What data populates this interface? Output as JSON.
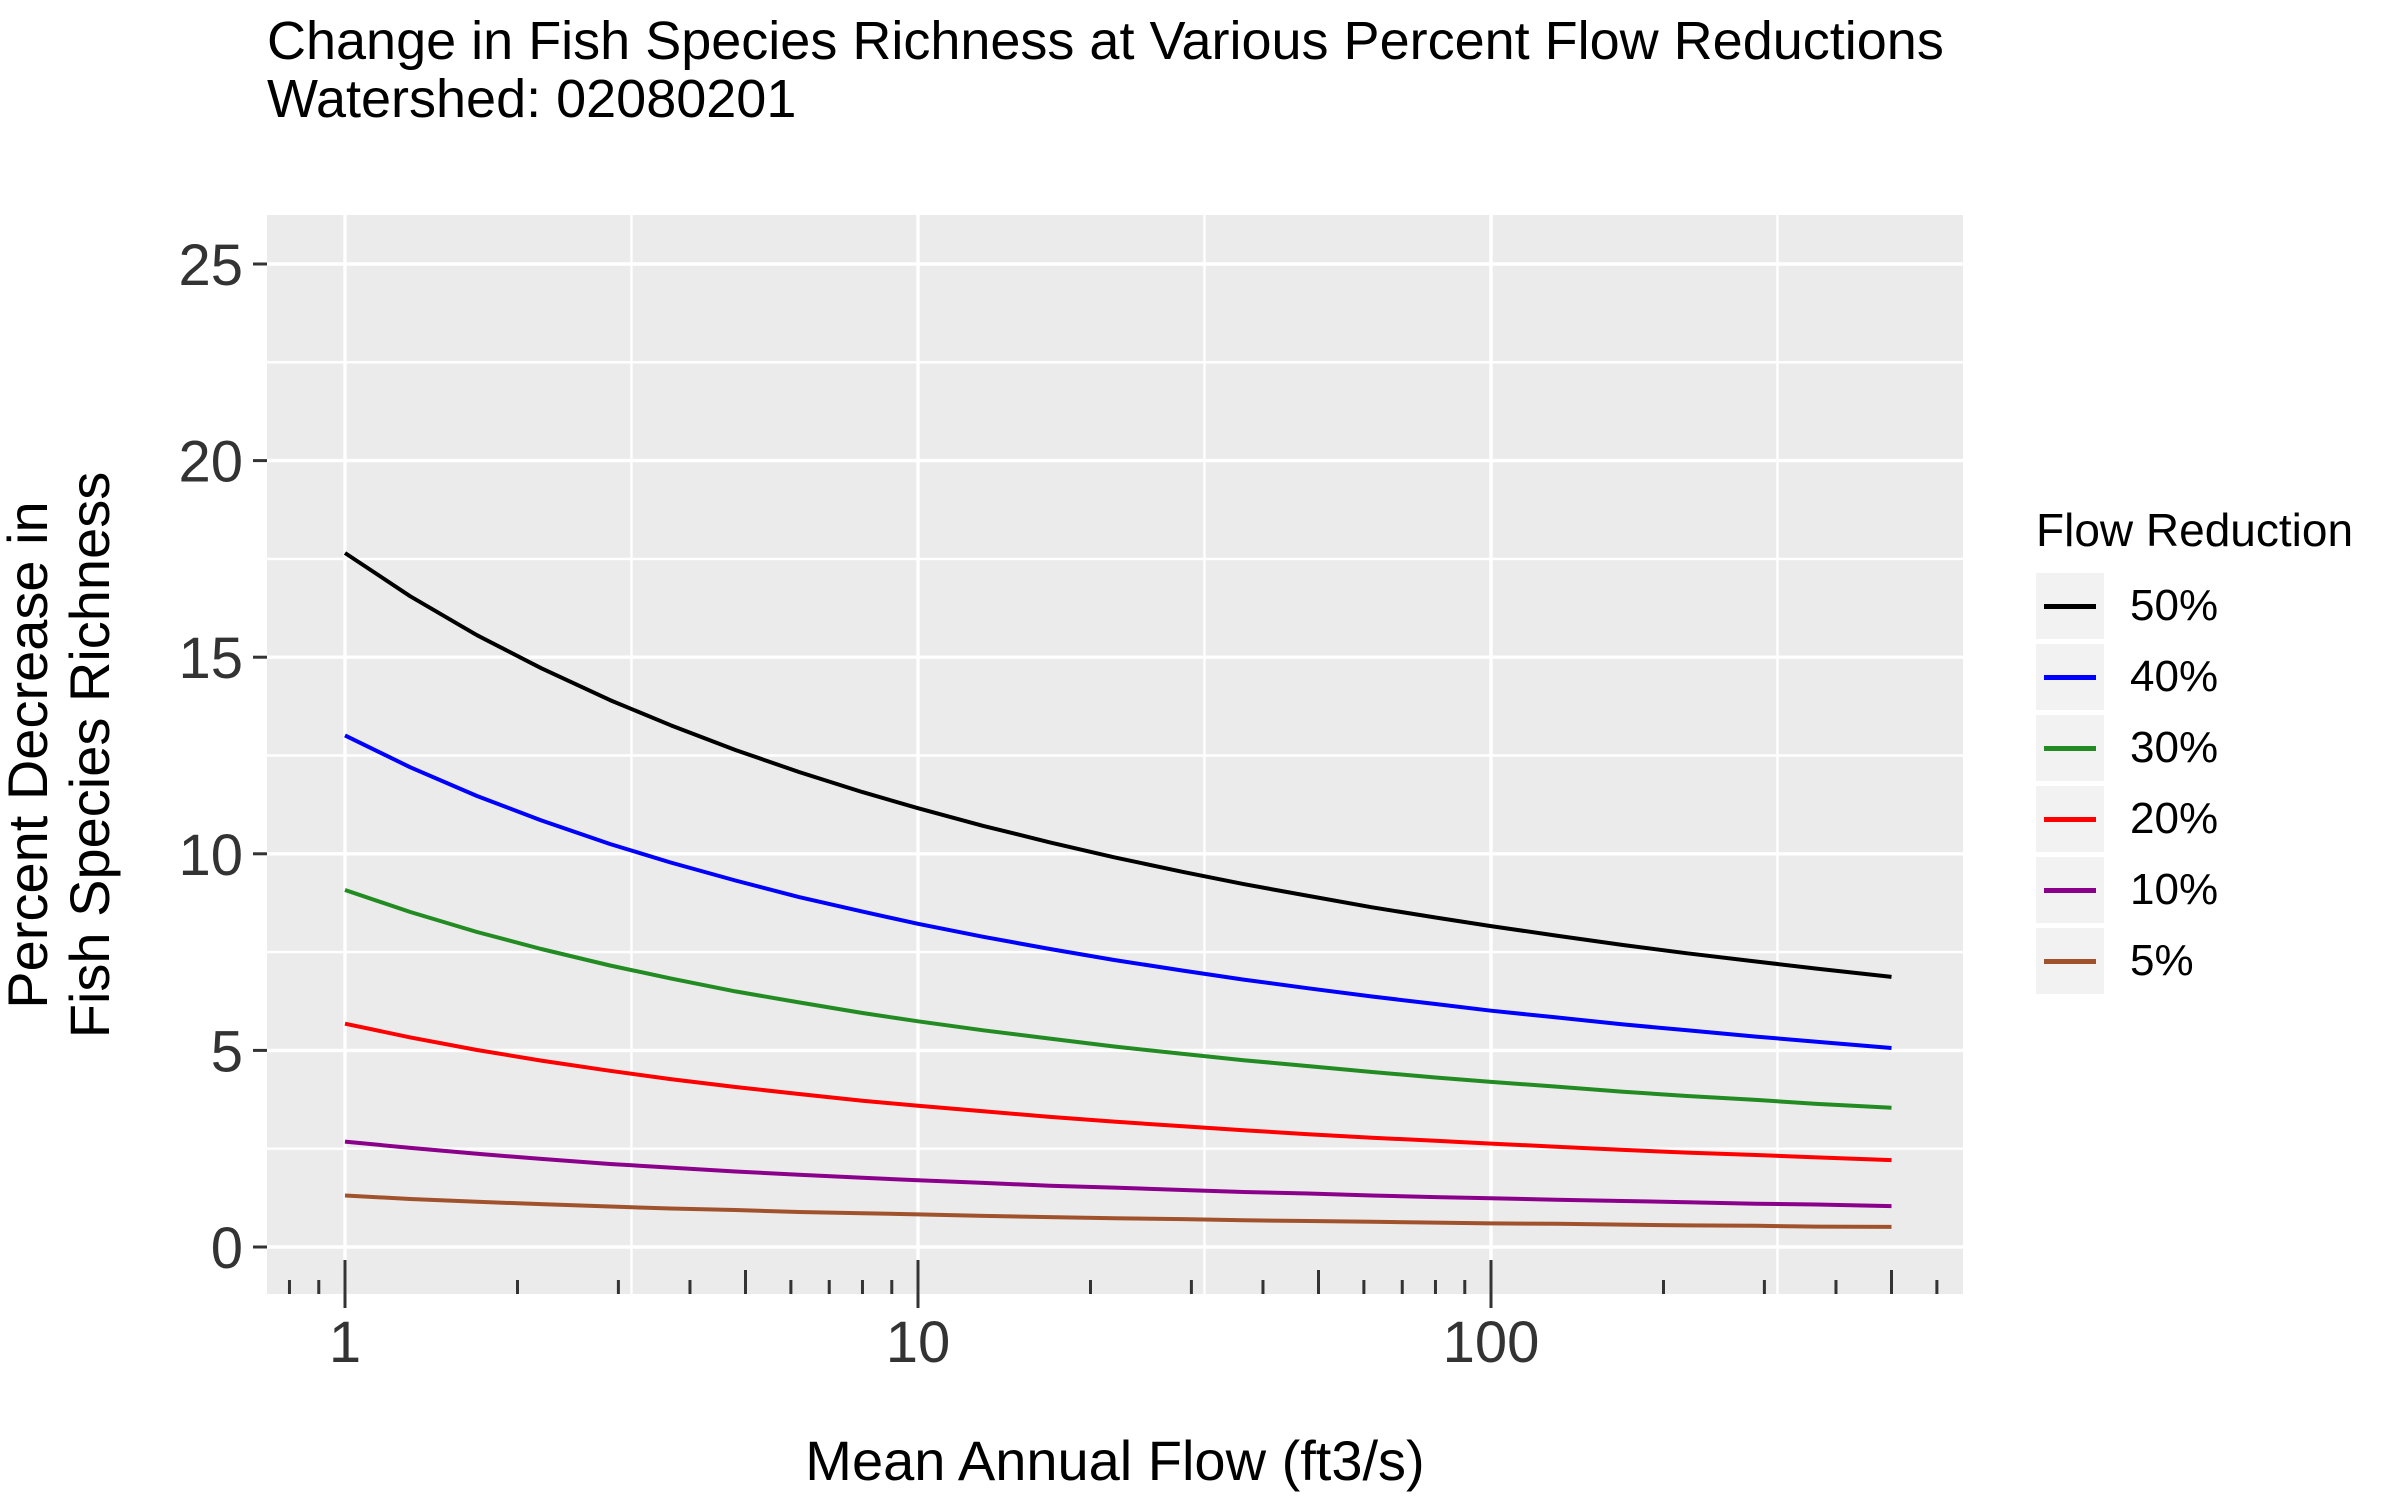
{
  "title": "Change in Fish Species Richness at Various Percent Flow Reductions",
  "subtitle": "Watershed: 02080201",
  "y_axis": {
    "title_line1": "Percent Decrease in",
    "title_line2": "Fish Species Richness",
    "tick_labels": [
      "0",
      "5",
      "10",
      "15",
      "20",
      "25"
    ]
  },
  "x_axis": {
    "title": "Mean Annual Flow (ft3/s)",
    "tick_labels": [
      "1",
      "10",
      "100"
    ]
  },
  "legend": {
    "title": "Flow Reduction"
  },
  "chart_data": {
    "type": "line",
    "title": "Change in Fish Species Richness at Various Percent Flow Reductions",
    "subtitle": "Watershed: 02080201",
    "xlabel": "Mean Annual Flow (ft3/s)",
    "ylabel": "Percent Decrease in Fish Species Richness",
    "x_scale": "log10",
    "x_panel_range": [
      0.73,
      670
    ],
    "y_panel_range": [
      -1.2,
      26.3
    ],
    "x_major_ticks": [
      1,
      10,
      100
    ],
    "x_minor_gridlines": [
      3.162,
      31.62,
      316.2
    ],
    "y_major_gridlines": [
      0,
      5,
      10,
      15,
      20,
      25
    ],
    "y_minor_gridlines": [
      2.5,
      7.5,
      12.5,
      17.5,
      22.5
    ],
    "log_ticks": {
      "long": [
        1,
        10,
        100
      ],
      "medium": [
        5,
        50,
        500
      ],
      "short": [
        0.8,
        0.9,
        2,
        3,
        4,
        6,
        7,
        8,
        9,
        20,
        30,
        40,
        60,
        70,
        80,
        90,
        200,
        300,
        400,
        600
      ]
    },
    "grid": true,
    "legend_position": "right",
    "legend_title": "Flow Reduction",
    "panel_bg": "#EBEBEB",
    "gridline_color": "#FFFFFF",
    "legend_key_bg": "#F2F2F2",
    "axis_text_color": "#333333",
    "tick_color": "#333333",
    "x": [
      1,
      1.3,
      1.7,
      2.2,
      2.9,
      3.7,
      4.8,
      6.2,
      8,
      10,
      13,
      17,
      22,
      29,
      37,
      48,
      62,
      80,
      100,
      130,
      170,
      220,
      290,
      370,
      500
    ],
    "series": [
      {
        "name": "50%",
        "color": "#000000",
        "values": [
          17.65,
          16.55,
          15.56,
          14.72,
          13.91,
          13.27,
          12.64,
          12.08,
          11.57,
          11.16,
          10.71,
          10.29,
          9.91,
          9.54,
          9.23,
          8.93,
          8.64,
          8.38,
          8.16,
          7.92,
          7.68,
          7.47,
          7.26,
          7.08,
          6.87
        ]
      },
      {
        "name": "40%",
        "color": "#0000FF",
        "values": [
          13.01,
          12.2,
          11.47,
          10.85,
          10.25,
          9.78,
          9.32,
          8.9,
          8.53,
          8.22,
          7.89,
          7.58,
          7.3,
          7.03,
          6.8,
          6.58,
          6.37,
          6.18,
          6.01,
          5.84,
          5.66,
          5.51,
          5.35,
          5.22,
          5.06
        ]
      },
      {
        "name": "30%",
        "color": "#228B22",
        "values": [
          9.08,
          8.52,
          8.01,
          7.58,
          7.16,
          6.83,
          6.5,
          6.22,
          5.95,
          5.74,
          5.51,
          5.3,
          5.1,
          4.91,
          4.75,
          4.6,
          4.45,
          4.31,
          4.2,
          4.08,
          3.95,
          3.84,
          3.74,
          3.64,
          3.54
        ]
      },
      {
        "name": "20%",
        "color": "#FF0000",
        "values": [
          5.68,
          5.33,
          5.01,
          4.74,
          4.48,
          4.27,
          4.07,
          3.89,
          3.72,
          3.59,
          3.45,
          3.31,
          3.19,
          3.07,
          2.97,
          2.87,
          2.78,
          2.7,
          2.63,
          2.55,
          2.47,
          2.4,
          2.34,
          2.28,
          2.21
        ]
      },
      {
        "name": "10%",
        "color": "#8B008B",
        "values": [
          2.68,
          2.52,
          2.37,
          2.24,
          2.11,
          2.02,
          1.92,
          1.84,
          1.76,
          1.7,
          1.63,
          1.56,
          1.51,
          1.45,
          1.4,
          1.36,
          1.31,
          1.27,
          1.24,
          1.2,
          1.17,
          1.14,
          1.1,
          1.08,
          1.04
        ]
      },
      {
        "name": "5%",
        "color": "#A0522D",
        "values": [
          1.31,
          1.22,
          1.15,
          1.09,
          1.03,
          0.98,
          0.94,
          0.89,
          0.86,
          0.83,
          0.79,
          0.76,
          0.73,
          0.71,
          0.68,
          0.66,
          0.64,
          0.62,
          0.6,
          0.59,
          0.57,
          0.55,
          0.54,
          0.52,
          0.51
        ]
      }
    ]
  }
}
